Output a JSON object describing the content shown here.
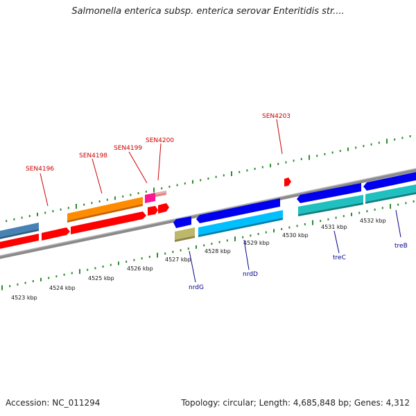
{
  "title": "Salmonella enterica subsp. enterica serovar Enteritidis str....",
  "footer": {
    "accession": "Accession: NC_011294",
    "topology": "Topology: circular; Length: 4,685,848 bp; Genes: 4,312"
  },
  "colors": {
    "backbone": "#8a8a8a",
    "tick": "#2b8a2b",
    "red_label": "#cc0000",
    "blue_label": "#00008b",
    "red_feature": "#ff0000",
    "orange_feature": "#ff8c00",
    "steelblue_feature": "#4682b4",
    "magenta_feature": "#ff1493",
    "pink_feature": "#f08080",
    "khaki_feature": "#bdb76b",
    "blue_feature": "#0000ee",
    "cyan_feature": "#00bfff",
    "teal_feature": "#20c0c0"
  },
  "scale": {
    "tick_labels": [
      "4523 kbp",
      "4524 kbp",
      "4525 kbp",
      "4526 kbp",
      "4527 kbp",
      "4528 kbp",
      "4529 kbp",
      "4530 kbp",
      "4531 kbp",
      "4532 kbp"
    ]
  },
  "genes": {
    "upper_labels": [
      "SEN4196",
      "SEN4198",
      "SEN4199",
      "SEN4200",
      "SEN4203"
    ],
    "lower_labels": [
      "nrdG",
      "nrdD",
      "treC",
      "treB"
    ]
  }
}
